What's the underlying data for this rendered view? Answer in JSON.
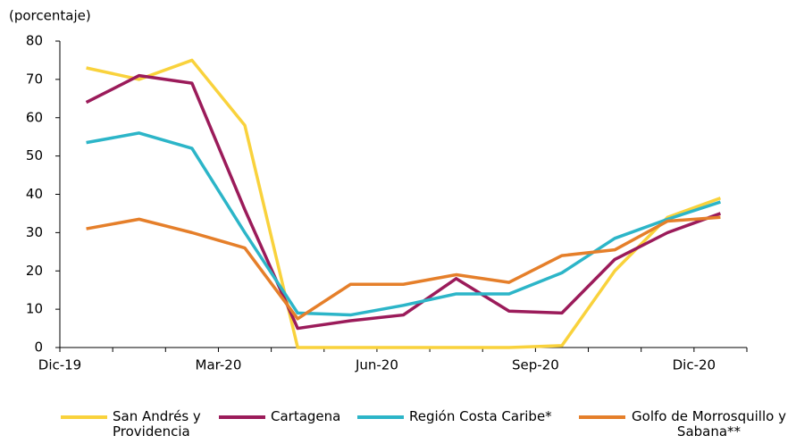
{
  "chart_data": {
    "type": "line",
    "y_label": "(porcentaje)",
    "categories": [
      "Dic-19",
      null,
      null,
      "Mar-20",
      null,
      null,
      "Jun-20",
      null,
      null,
      "Sep-20",
      null,
      null,
      "Dic-20"
    ],
    "ylim": [
      0,
      80
    ],
    "yticks": [
      0,
      10,
      20,
      30,
      40,
      50,
      60,
      70,
      80
    ],
    "series": [
      {
        "name": "San Andrés y Providencia",
        "color": "#f9d23c",
        "values": [
          73,
          70,
          75,
          58,
          0,
          0,
          0,
          0,
          0,
          0.5,
          20,
          34,
          39
        ]
      },
      {
        "name": "Cartagena",
        "color": "#9b1b5a",
        "values": [
          64,
          71,
          69,
          36,
          5,
          7,
          8.5,
          18,
          9.5,
          9,
          23,
          30,
          35
        ]
      },
      {
        "name": "Región Costa Caribe*",
        "color": "#2cb5c8",
        "values": [
          53.5,
          56,
          52,
          30,
          9,
          8.5,
          11,
          14,
          14,
          19.5,
          28.5,
          33.5,
          38
        ]
      },
      {
        "name": "Golfo de Morrosquillo y Sabana**",
        "color": "#e57f2a",
        "values": [
          31,
          33.5,
          30,
          26,
          7.5,
          16.5,
          16.5,
          19,
          17,
          24,
          25.5,
          33,
          34
        ]
      }
    ]
  }
}
